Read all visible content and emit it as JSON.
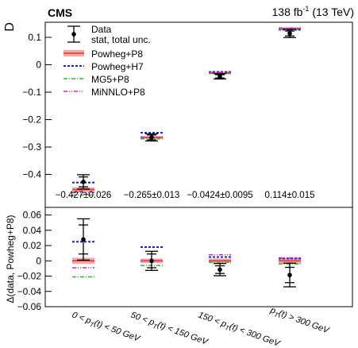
{
  "experiment": "CMS",
  "lumi": "138 fb",
  "lumi_sup": "-1",
  "lumi_energy": " (13 TeV)",
  "chart_data": [
    {
      "type": "scatter",
      "panel": "top",
      "ylabel": "D",
      "ylim": [
        -0.52,
        0.155
      ],
      "yticks": [
        0.1,
        0,
        -0.1,
        -0.2,
        -0.3,
        -0.4
      ],
      "ytick_labels": [
        "0.1",
        "0",
        "−0.1",
        "−0.2",
        "−0.3",
        "−0.4"
      ],
      "categories": [
        "0 < p_T(t) < 50 GeV",
        "50 < p_T(t) < 150 GeV",
        "150 < p_T(t) < 300 GeV",
        "p_T(t) > 300 GeV"
      ],
      "data": {
        "name": "Data",
        "values": [
          -0.427,
          -0.265,
          -0.0424,
          0.114
        ],
        "total_unc": [
          0.026,
          0.013,
          0.0095,
          0.015
        ],
        "stat_unc": [
          0.018,
          0.009,
          0.006,
          0.009
        ]
      },
      "value_labels": [
        "−0.427±0.026",
        "−0.265±0.013",
        "−0.0424±0.0095",
        "0.114±0.015"
      ],
      "series": [
        {
          "name": "Powheg+P8",
          "style": "band",
          "values": [
            -0.455,
            -0.265,
            -0.0305,
            0.132
          ],
          "band_halfwidth": [
            0.008,
            0.005,
            0.004,
            0.004
          ]
        },
        {
          "name": "Powheg+H7",
          "style": "dashed",
          "values": [
            -0.4295,
            -0.248,
            -0.026,
            0.1275
          ]
        },
        {
          "name": "MG5+P8",
          "style": "dashdot",
          "values": [
            -0.475,
            -0.27,
            -0.032,
            0.1285
          ]
        },
        {
          "name": "MiNNLO+P8",
          "style": "dashdotdot",
          "values": [
            -0.466,
            -0.264,
            -0.028,
            0.134
          ]
        }
      ],
      "legend": {
        "data_label": "Data",
        "data_label2": "stat, total unc.",
        "placement": "top-left"
      }
    },
    {
      "type": "scatter",
      "panel": "bottom",
      "ylabel": "Δ(data, Powheg+P8)",
      "ylim": [
        -0.06,
        0.07
      ],
      "yticks": [
        0.06,
        0.04,
        0.02,
        0,
        -0.02,
        -0.04,
        -0.06
      ],
      "ytick_labels": [
        "0.06",
        "0.04",
        "0.02",
        "0",
        "−0.02",
        "−0.04",
        "−0.06"
      ],
      "data": {
        "values": [
          0.028,
          0.0,
          -0.0115,
          -0.0185
        ],
        "total_unc": [
          0.027,
          0.0125,
          0.008,
          0.0155
        ],
        "stat_unc": [
          0.019,
          0.009,
          0.005,
          0.01
        ]
      },
      "series": [
        {
          "name": "Powheg+P8",
          "values": [
            0.0,
            0.0,
            0.0,
            0.0
          ],
          "band_halfwidth": [
            0.004,
            0.003,
            0.003,
            0.004
          ]
        },
        {
          "name": "Powheg+H7",
          "values": [
            0.025,
            0.018,
            0.005,
            0.003
          ]
        },
        {
          "name": "MG5+P8",
          "values": [
            -0.021,
            -0.006,
            -0.002,
            -0.004
          ]
        },
        {
          "name": "MiNNLO+P8",
          "values": [
            -0.009,
            0.0,
            0.008,
            0.004
          ]
        }
      ]
    }
  ],
  "colors": {
    "band": "#f5a7a4",
    "central": "#e8322e",
    "h7": "#1f1fc9",
    "mg5": "#2eb82e",
    "minnlo": "#d21fd2",
    "data": "#000000"
  }
}
